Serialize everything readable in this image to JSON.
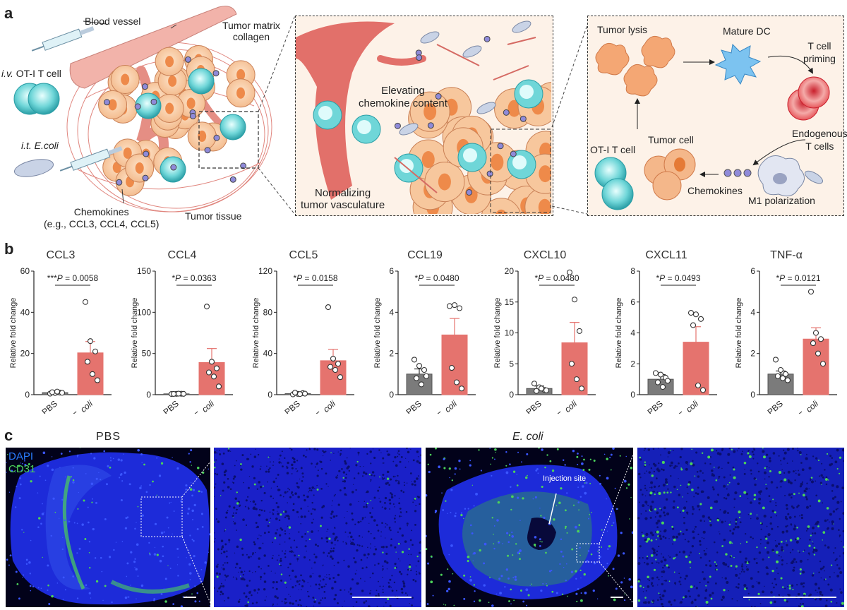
{
  "panel_a": {
    "letter": "a",
    "labels": {
      "blood_vessel": "Blood vessel",
      "tumor_matrix": "Tumor matrix\ncollagen",
      "tumor_matrix_l1": "Tumor matrix",
      "tumor_matrix_l2": "collagen",
      "iv_prefix": "i.v.",
      "iv_text": "OT-I T cell",
      "it_prefix": "i.t.",
      "it_text": "E.coli",
      "chemokines_l1": "Chemokines",
      "chemokines_l2": "(e.g., CCL3, CCL4, CCL5)",
      "tumor_tissue": "Tumor tissue",
      "elevating_l1": "Elevating",
      "elevating_l2": "chemokine content",
      "normalizing_l1": "Normalizing",
      "normalizing_l2": "tumor vasculature",
      "tumor_lysis": "Tumor lysis",
      "mature_dc": "Mature DC",
      "t_cell_priming_l1": "T cell",
      "t_cell_priming_l2": "priming",
      "endogenous_l1": "Endogenous",
      "endogenous_l2": "T cells",
      "tumor_cell": "Tumor cell",
      "ot1_t_cell": "OT-I T cell",
      "chemokines_short": "Chemokines",
      "m1_polarization": "M1 polarization"
    }
  },
  "panel_b": {
    "letter": "b"
  },
  "panel_c": {
    "letter": "c",
    "title_pbs": "PBS",
    "title_ecoli": "E. coli",
    "legend_dapi": "DAPI",
    "legend_cd31": "CD31",
    "injection_site": "Injection site",
    "colors": {
      "dapi": "#2a3cff",
      "cd31": "#4cd25a"
    }
  },
  "chart_data": [
    {
      "type": "bar",
      "title": "CCL3",
      "ylabel": "Relative fold change",
      "categories": [
        "PBS",
        "E. coli"
      ],
      "values": [
        1.0,
        20.3
      ],
      "sem": [
        0.3,
        5.5
      ],
      "ylim": [
        0,
        60
      ],
      "yticks": [
        0,
        20,
        40,
        60
      ],
      "points": [
        [
          0.5,
          0.8,
          1.0,
          1.2,
          1.5,
          0.9
        ],
        [
          45,
          26,
          21,
          16,
          10,
          7
        ]
      ],
      "annotation": "***P = 0.0058",
      "ann_stars": "***",
      "ann_p": "P",
      "ann_val": " = 0.0058"
    },
    {
      "type": "bar",
      "title": "CCL4",
      "ylabel": "Relative fold change",
      "categories": [
        "PBS",
        "E. coli"
      ],
      "values": [
        1.0,
        39
      ],
      "sem": [
        0.2,
        17
      ],
      "ylim": [
        0,
        150
      ],
      "yticks": [
        0,
        50,
        100,
        150
      ],
      "points": [
        [
          0.8,
          1.0,
          1.1,
          0.9,
          1.2,
          1.0
        ],
        [
          107,
          40,
          32,
          27,
          22,
          10
        ]
      ],
      "annotation": "*P = 0.0363",
      "ann_stars": "*",
      "ann_p": "P",
      "ann_val": " = 0.0363"
    },
    {
      "type": "bar",
      "title": "CCL5",
      "ylabel": "Relative fold change",
      "categories": [
        "PBS",
        "E. coli"
      ],
      "values": [
        1.0,
        33
      ],
      "sem": [
        0.6,
        11
      ],
      "ylim": [
        0,
        120
      ],
      "yticks": [
        0,
        40,
        80,
        120
      ],
      "points": [
        [
          0.3,
          0.8,
          1.5,
          2.0,
          0.6,
          1.0
        ],
        [
          85,
          35,
          30,
          27,
          24,
          17
        ]
      ],
      "annotation": "*P = 0.0158",
      "ann_stars": "*",
      "ann_p": "P",
      "ann_val": " = 0.0158"
    },
    {
      "type": "bar",
      "title": "CCL19",
      "ylabel": "Relative fold change",
      "categories": [
        "PBS",
        "E. coli"
      ],
      "values": [
        1.0,
        2.9
      ],
      "sem": [
        0.25,
        0.8
      ],
      "ylim": [
        0,
        6
      ],
      "yticks": [
        0,
        2,
        4,
        6
      ],
      "points": [
        [
          1.7,
          1.4,
          1.2,
          0.8,
          0.5,
          0.9
        ],
        [
          4.3,
          4.35,
          4.2,
          1.3,
          0.6,
          0.3
        ]
      ],
      "annotation": "*P = 0.0480",
      "ann_stars": "*",
      "ann_p": "P",
      "ann_val": " = 0.0480"
    },
    {
      "type": "bar",
      "title": "CXCL10",
      "ylabel": "Relative fold change",
      "categories": [
        "PBS",
        "E. coli"
      ],
      "values": [
        1.0,
        8.4
      ],
      "sem": [
        0.4,
        3.3
      ],
      "ylim": [
        0,
        20
      ],
      "yticks": [
        0,
        5,
        10,
        15,
        20
      ],
      "points": [
        [
          1.8,
          1.2,
          0.8,
          0.6,
          1.0,
          0.7
        ],
        [
          19.8,
          15.4,
          10.3,
          5.0,
          2.5,
          1.0
        ]
      ],
      "annotation": "*P = 0.0480",
      "ann_stars": "*",
      "ann_p": "P",
      "ann_val": " = 0.0480"
    },
    {
      "type": "bar",
      "title": "CXCL11",
      "ylabel": "Relative fold change",
      "categories": [
        "PBS",
        "E. coli"
      ],
      "values": [
        1.0,
        3.4
      ],
      "sem": [
        0.3,
        1.0
      ],
      "ylim": [
        0,
        8
      ],
      "yticks": [
        0,
        2,
        4,
        6,
        8
      ],
      "points": [
        [
          1.4,
          1.3,
          1.1,
          0.8,
          0.5,
          0.9
        ],
        [
          5.3,
          5.2,
          4.9,
          4.5,
          0.6,
          0.3
        ]
      ],
      "annotation": "*P = 0.0493",
      "ann_stars": "*",
      "ann_p": "P",
      "ann_val": " = 0.0493"
    },
    {
      "type": "bar",
      "title": "TNF-α",
      "ylabel": "Relative fold change",
      "categories": [
        "PBS",
        "E. coli"
      ],
      "values": [
        1.0,
        2.7
      ],
      "sem": [
        0.15,
        0.55
      ],
      "ylim": [
        0,
        6
      ],
      "yticks": [
        0,
        2,
        4,
        6
      ],
      "points": [
        [
          1.7,
          1.2,
          1.0,
          0.9,
          0.8,
          0.7
        ],
        [
          5.0,
          3.0,
          2.7,
          2.5,
          2.0,
          1.5
        ]
      ],
      "annotation": "*P = 0.0121",
      "ann_stars": "*",
      "ann_p": "P",
      "ann_val": " = 0.0121"
    }
  ]
}
